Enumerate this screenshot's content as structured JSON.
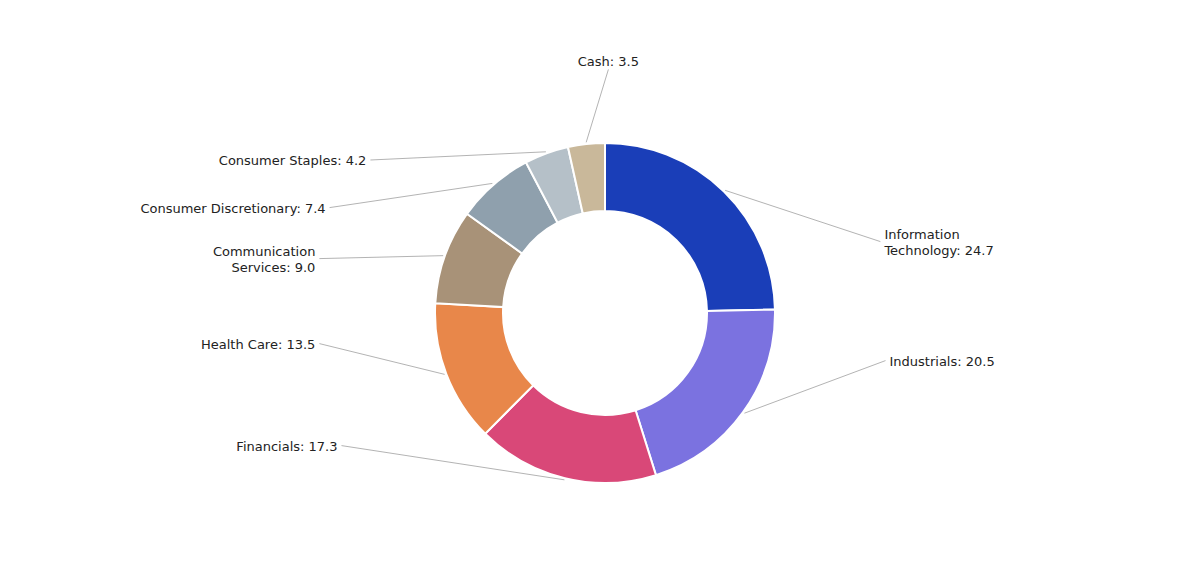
{
  "chart_data": {
    "type": "pie",
    "donut": true,
    "categories": [
      "Information\nTechnology: 24.7",
      "Industrials: 20.5",
      "Financials: 17.3",
      "Health Care: 13.5",
      "Communication\nServices: 9.0",
      "Consumer Discretionary: 7.4",
      "Consumer Staples: 4.2",
      "Cash: 3.5"
    ],
    "values": [
      24.7,
      20.5,
      17.3,
      13.5,
      9.0,
      7.4,
      4.2,
      3.5
    ],
    "colors": [
      "#1a3eb8",
      "#7b72e0",
      "#d94878",
      "#e8874a",
      "#a89278",
      "#8fa0ad",
      "#b5c0c8",
      "#c9b89a"
    ]
  }
}
